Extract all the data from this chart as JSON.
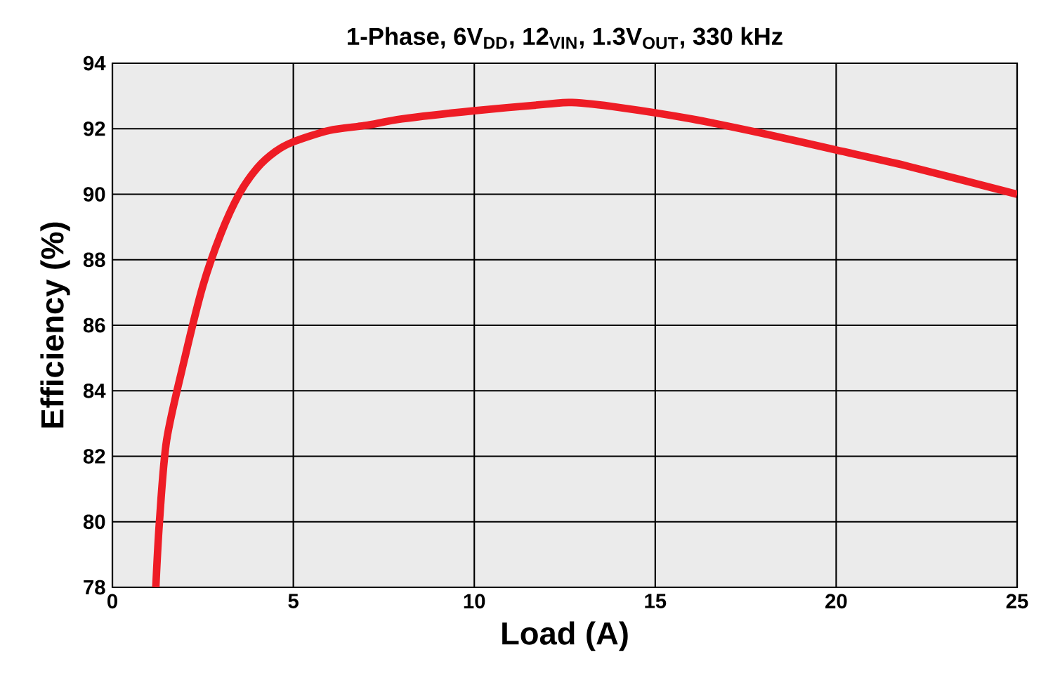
{
  "chart_data": {
    "type": "line",
    "title": "1-Phase, 6V$_{DD}$, 12$_{VIN}$, 1.3V$_{OUT}$, 330 kHz",
    "xlabel": "Load (A)",
    "ylabel": "Efficiency (%)",
    "xlim": [
      0,
      25
    ],
    "ylim": [
      78,
      94
    ],
    "xticks": [
      0,
      5,
      10,
      15,
      20,
      25
    ],
    "yticks": [
      78,
      80,
      82,
      84,
      86,
      88,
      90,
      92,
      94
    ],
    "grid": true,
    "marker": "none",
    "line_style": "solid",
    "series": [
      {
        "color": "#ee1c25",
        "x": [
          1.2,
          1.3,
          1.5,
          2,
          2.5,
          3,
          3.5,
          4,
          4.5,
          5,
          6,
          7,
          8,
          10,
          12,
          12.7,
          14,
          16,
          18,
          20,
          22,
          25
        ],
        "values": [
          78,
          80,
          82.5,
          85,
          87.2,
          88.8,
          90,
          90.8,
          91.3,
          91.6,
          91.95,
          92.1,
          92.3,
          92.55,
          92.75,
          92.8,
          92.65,
          92.3,
          91.85,
          91.35,
          90.85,
          90.0
        ]
      }
    ]
  }
}
